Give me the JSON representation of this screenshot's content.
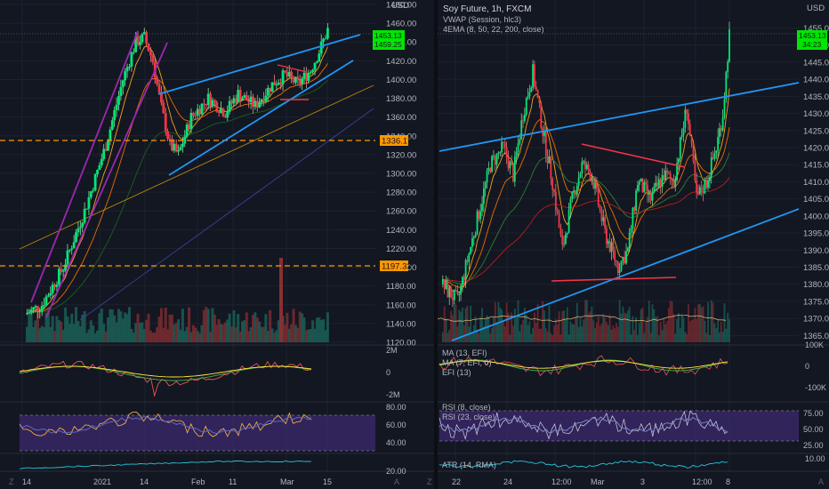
{
  "colors": {
    "background": "#131722",
    "grid": "#1e222d",
    "up": "#26a69a",
    "down": "#ef5350",
    "candle_up_bright": "#00e676",
    "candle_down_bright": "#f23645",
    "trend_blue": "#2196f3",
    "trend_purple": "#9c27b0",
    "level_orange": "#ff9800",
    "price_tag_green": "#00e600",
    "rsi_band": "#3c2a6e",
    "ema_orange": "#f7a21b",
    "ema_red": "#b71c1c",
    "ema_green": "#4caf50",
    "ema_blue": "#42a5f5",
    "rsi_line": "#7e57c2",
    "rsi_line2": "#ffeb3b",
    "atr_line": "#26c6da"
  },
  "left": {
    "unit": "USD",
    "price_ticks": [
      "1480.00",
      "1460.00",
      "1440.00",
      "1420.00",
      "1400.00",
      "1380.00",
      "1360.00",
      "1340.00",
      "1320.00",
      "1300.00",
      "1280.00",
      "1260.00",
      "1240.00",
      "1220.00",
      "1200.00",
      "1180.00",
      "1160.00",
      "1140.00",
      "1120.00"
    ],
    "level_1": "1336.17",
    "level_2": "1197.33",
    "last_price_1": "1453.13",
    "last_price_2": "1459.25",
    "efi_ticks": [
      "2M",
      "0",
      "-2M"
    ],
    "rsi_ticks": [
      "80.00",
      "60.00",
      "40.00"
    ],
    "atr_tick": "20.00",
    "time_ticks": [
      "14",
      "2021",
      "14",
      "Feb",
      "11",
      "Mar",
      "15"
    ],
    "corner_z": "Z",
    "corner_a": "A"
  },
  "right": {
    "unit": "USD",
    "title": "Soy Future, 1h, FXCM",
    "study_1": "VWAP (Session, hlc3)",
    "study_2": "4EMA (8, 50, 22, 200, close)",
    "price_ticks": [
      "1455.00",
      "1450.00",
      "1445.00",
      "1440.00",
      "1435.00",
      "1430.00",
      "1425.00",
      "1420.00",
      "1415.00",
      "1410.00",
      "1405.00",
      "1400.00",
      "1395.00",
      "1390.00",
      "1385.00",
      "1380.00",
      "1375.00",
      "1370.00",
      "1365.00"
    ],
    "last_price_1": "1453.13",
    "last_price_2": "34:23",
    "efi_labels": [
      "MA (13, EFI)",
      "MA (7, EFI, 0)",
      "EFI (13)"
    ],
    "efi_ticks": [
      "100K",
      "0",
      "-100K"
    ],
    "rsi_labels": [
      "RSI (8, close)",
      "RSI (23, close)"
    ],
    "rsi_ticks": [
      "75.00",
      "50.00",
      "25.00"
    ],
    "atr_label": "ATR (14, RMA)",
    "atr_tick": "10.00",
    "time_ticks": [
      "22",
      "24",
      "12:00",
      "Mar",
      "3",
      "12:00",
      "8"
    ],
    "corner_z": "Z",
    "corner_a": "A"
  },
  "chart_data": [
    {
      "type": "candlestick",
      "title": "",
      "ylim": [
        1120,
        1480
      ],
      "x": [
        "14",
        "2021",
        "14",
        "Feb",
        "11",
        "Mar",
        "15"
      ],
      "horizontal_levels": [
        1336.17,
        1197.33
      ],
      "last_price": 1453.13,
      "subpanels": [
        "EFI",
        "RSI",
        "ATR"
      ]
    },
    {
      "type": "candlestick",
      "title": "Soy Future, 1h, FXCM",
      "ylim": [
        1363,
        1458
      ],
      "x": [
        "22",
        "24",
        "12:00",
        "Mar",
        "3",
        "12:00",
        "8"
      ],
      "last_price": 1453.13,
      "studies": [
        "VWAP (Session, hlc3)",
        "4EMA (8, 50, 22, 200, close)",
        "MA (13, EFI)",
        "MA (7, EFI, 0)",
        "EFI (13)",
        "RSI (8, close)",
        "RSI (23, close)",
        "ATR (14, RMA)"
      ]
    }
  ]
}
